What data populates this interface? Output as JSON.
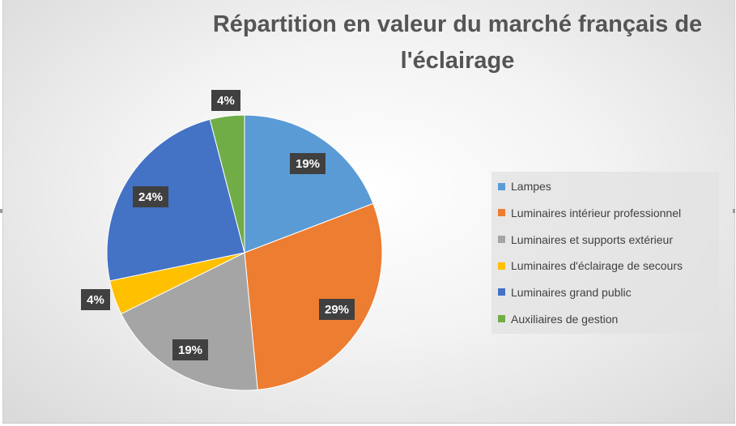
{
  "chart_data": {
    "type": "pie",
    "title": "Répartition en valeur du marché français de l'éclairage",
    "categories": [
      "Lampes",
      "Luminaires intérieur professionnel",
      "Luminaires et supports extérieur",
      "Luminaires d'éclairage de secours",
      "Luminaires grand public",
      "Auxiliaires de gestion"
    ],
    "values": [
      19,
      29,
      19,
      4,
      24,
      4
    ],
    "labels": [
      "19%",
      "29%",
      "19%",
      "4%",
      "24%",
      "4%"
    ],
    "colors": [
      "#5B9BD5",
      "#ED7D31",
      "#A5A5A5",
      "#FFC000",
      "#4472C4",
      "#70AD47"
    ],
    "legend_position": "right",
    "start_angle": "12 o'clock, clockwise"
  }
}
